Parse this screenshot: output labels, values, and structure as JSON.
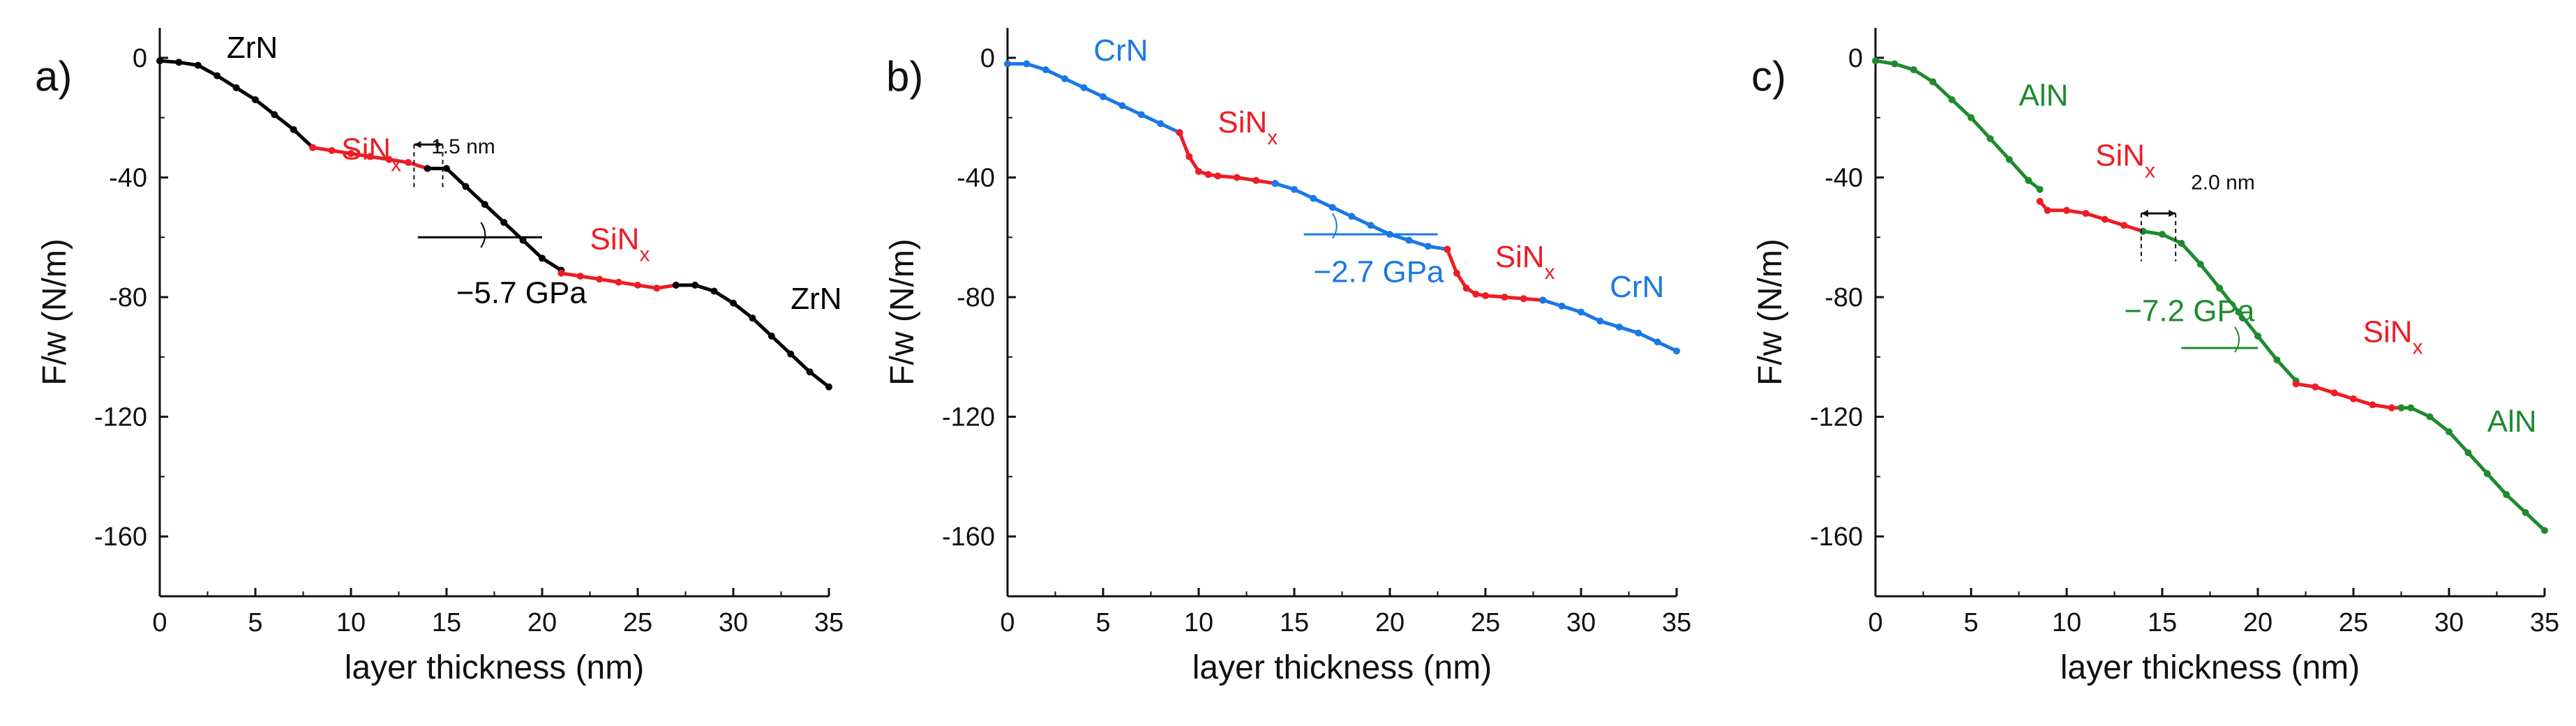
{
  "colors": {
    "zrn": "#000000",
    "crn": "#1a78e6",
    "aln": "#1f8a2e",
    "sinx": "#ee1c25",
    "axis": "#111111"
  },
  "chart_data": [
    {
      "type": "scatter",
      "panel_label": "a)",
      "xlabel": "layer thickness (nm)",
      "ylabel": "F/w (N/m)",
      "xlim": [
        0,
        35
      ],
      "ylim": [
        -180,
        10
      ],
      "xticks": [
        0,
        5,
        10,
        15,
        20,
        25,
        30,
        35
      ],
      "yticks": [
        0,
        -40,
        -80,
        -120,
        -160
      ],
      "series": [
        {
          "name": "ZrN",
          "color_key": "zrn",
          "x": [
            0,
            1,
            2,
            3,
            4,
            5,
            6,
            7,
            8
          ],
          "y": [
            -1,
            -1.5,
            -2.5,
            -6,
            -10,
            -14,
            -19,
            -24,
            -30
          ]
        },
        {
          "name": "SiNx",
          "color_key": "sinx",
          "x": [
            8,
            9,
            10,
            11,
            12,
            13,
            14
          ],
          "y": [
            -30,
            -31,
            -32,
            -33,
            -34,
            -35,
            -37
          ]
        },
        {
          "name": "ZrN",
          "color_key": "zrn",
          "x": [
            14,
            15,
            16,
            17,
            18,
            19,
            20,
            21
          ],
          "y": [
            -37,
            -37,
            -43,
            -49,
            -55,
            -61,
            -67,
            -71
          ]
        },
        {
          "name": "SiNx",
          "color_key": "sinx",
          "x": [
            21,
            22,
            23,
            24,
            25,
            26,
            27
          ],
          "y": [
            -72,
            -73,
            -74,
            -75,
            -76,
            -77,
            -76
          ]
        },
        {
          "name": "ZrN",
          "color_key": "zrn",
          "x": [
            27,
            28,
            29,
            30,
            31,
            32,
            33,
            34,
            35
          ],
          "y": [
            -76,
            -76,
            -78,
            -82,
            -87,
            -93,
            -99,
            -105,
            -110
          ]
        }
      ],
      "annotations": [
        {
          "text": "ZrN",
          "x": 3.5,
          "y": 0,
          "color_key": "zrn"
        },
        {
          "text_main": "SiN",
          "text_sub": "x",
          "x": 9.5,
          "y": -34,
          "color_key": "sinx"
        },
        {
          "text": "1.5 nm",
          "x": 14.2,
          "y": -32,
          "color_key": "zrn"
        },
        {
          "text_main": "SiN",
          "text_sub": "x",
          "x": 22.5,
          "y": -64,
          "color_key": "sinx"
        },
        {
          "text": "−5.7 GPa",
          "x": 15.5,
          "y": -82,
          "color_key": "zrn"
        },
        {
          "text": "ZrN",
          "x": 33,
          "y": -84,
          "color_key": "zrn"
        }
      ]
    },
    {
      "type": "scatter",
      "panel_label": "b)",
      "xlabel": "layer thickness (nm)",
      "ylabel": "F/w (N/m)",
      "xlim": [
        0,
        35
      ],
      "ylim": [
        -180,
        10
      ],
      "xticks": [
        0,
        5,
        10,
        15,
        20,
        25,
        30,
        35
      ],
      "yticks": [
        0,
        -40,
        -80,
        -120,
        -160
      ],
      "series": [
        {
          "name": "CrN",
          "color_key": "crn",
          "x": [
            0,
            1,
            2,
            3,
            4,
            5,
            6,
            7,
            8,
            9
          ],
          "y": [
            -2,
            -2,
            -4,
            -7,
            -10,
            -13,
            -16,
            -19,
            -22,
            -25
          ]
        },
        {
          "name": "SiNx",
          "color_key": "sinx",
          "x": [
            9,
            9.5,
            10,
            10.5,
            11,
            12,
            13,
            14
          ],
          "y": [
            -25,
            -33,
            -38,
            -39,
            -39.5,
            -40,
            -41,
            -42
          ]
        },
        {
          "name": "CrN",
          "color_key": "crn",
          "x": [
            14,
            15,
            16,
            17,
            18,
            19,
            20,
            21,
            22,
            23
          ],
          "y": [
            -42,
            -44,
            -47,
            -50,
            -53,
            -56,
            -59,
            -61,
            -63,
            -64
          ]
        },
        {
          "name": "SiNx",
          "color_key": "sinx",
          "x": [
            23,
            23.5,
            24,
            24.5,
            25,
            26,
            27,
            28
          ],
          "y": [
            -64,
            -72,
            -77,
            -79,
            -79.5,
            -80,
            -80.5,
            -81
          ]
        },
        {
          "name": "CrN",
          "color_key": "crn",
          "x": [
            28,
            29,
            30,
            31,
            32,
            33,
            34,
            35
          ],
          "y": [
            -81,
            -83,
            -85,
            -88,
            -90,
            -92,
            -95,
            -98
          ]
        }
      ],
      "annotations": [
        {
          "text": "CrN",
          "x": 4.5,
          "y": -1,
          "color_key": "crn"
        },
        {
          "text_main": "SiN",
          "text_sub": "x",
          "x": 11,
          "y": -25,
          "color_key": "sinx"
        },
        {
          "text": "−2.7 GPa",
          "x": 16,
          "y": -75,
          "color_key": "crn"
        },
        {
          "text_main": "SiN",
          "text_sub": "x",
          "x": 25.5,
          "y": -70,
          "color_key": "sinx"
        },
        {
          "text": "CrN",
          "x": 31.5,
          "y": -80,
          "color_key": "crn"
        }
      ]
    },
    {
      "type": "scatter",
      "panel_label": "c)",
      "xlabel": "layer thickness (nm)",
      "ylabel": "F/w (N/m)",
      "xlim": [
        0,
        35
      ],
      "ylim": [
        -180,
        10
      ],
      "xticks": [
        0,
        5,
        10,
        15,
        20,
        25,
        30,
        35
      ],
      "yticks": [
        0,
        -40,
        -80,
        -120,
        -160
      ],
      "series": [
        {
          "name": "AlN",
          "color_key": "aln",
          "x": [
            0,
            1,
            2,
            3,
            4,
            5,
            6,
            7,
            8,
            8.6
          ],
          "y": [
            -1,
            -2,
            -4,
            -8,
            -14,
            -20,
            -27,
            -34,
            -41,
            -44
          ]
        },
        {
          "name": "SiNx",
          "color_key": "sinx",
          "x": [
            8.6,
            9,
            10,
            11,
            12,
            13,
            14
          ],
          "y": [
            -48,
            -51,
            -51,
            -52,
            -54,
            -56,
            -58
          ]
        },
        {
          "name": "AlN",
          "color_key": "aln",
          "x": [
            14,
            15,
            16,
            17,
            18,
            19,
            20,
            21,
            22
          ],
          "y": [
            -58,
            -59,
            -62,
            -69,
            -77,
            -85,
            -93,
            -101,
            -108
          ]
        },
        {
          "name": "SiNx",
          "color_key": "sinx",
          "x": [
            22,
            23,
            24,
            25,
            26,
            27,
            27.5
          ],
          "y": [
            -109,
            -110,
            -112,
            -114,
            -116,
            -117,
            -117
          ]
        },
        {
          "name": "AlN",
          "color_key": "aln",
          "x": [
            27.5,
            28,
            29,
            30,
            31,
            32,
            33,
            34,
            35
          ],
          "y": [
            -117,
            -117,
            -120,
            -125,
            -132,
            -139,
            -146,
            -152,
            -158
          ]
        }
      ],
      "annotations": [
        {
          "text": "AlN",
          "x": 7.5,
          "y": -16,
          "color_key": "aln"
        },
        {
          "text_main": "SiN",
          "text_sub": "x",
          "x": 11.5,
          "y": -36,
          "color_key": "sinx"
        },
        {
          "text": "2.0 nm",
          "x": 16.5,
          "y": -44,
          "color_key": "zrn"
        },
        {
          "text": "−7.2 GPa",
          "x": 13,
          "y": -88,
          "color_key": "aln"
        },
        {
          "text_main": "SiN",
          "text_sub": "x",
          "x": 25.5,
          "y": -95,
          "color_key": "sinx"
        },
        {
          "text": "AlN",
          "x": 32,
          "y": -125,
          "color_key": "aln"
        }
      ]
    }
  ]
}
